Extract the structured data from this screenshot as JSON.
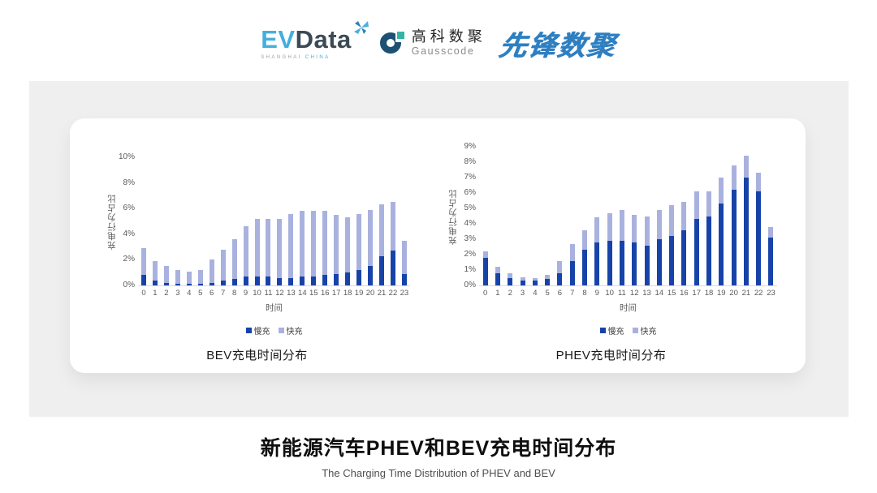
{
  "header": {
    "evdata": {
      "ev": "EV",
      "data": "Data",
      "sub_left": "SHANGHAI",
      "sub_right": "CHINA"
    },
    "gausscode": {
      "cn": "高科数聚",
      "en": "Gausscode"
    },
    "xianfeng": "先锋数聚"
  },
  "colors": {
    "slow": "#1743a9",
    "fast": "#a9b2de",
    "axis_text": "#595959",
    "baseline": "#d9d9d9",
    "panel": "#efefef"
  },
  "chart_data": [
    {
      "type": "bar",
      "stacked": true,
      "title": "BEV充电时间分布",
      "xlabel": "时间",
      "ylabel": "充电行为占比",
      "ylim": [
        0,
        10
      ],
      "ytick_step": 2,
      "ytick_suffix": "%",
      "grid": false,
      "legend_position": "bottom",
      "categories": [
        "0",
        "1",
        "2",
        "3",
        "4",
        "5",
        "6",
        "7",
        "8",
        "9",
        "10",
        "11",
        "12",
        "13",
        "14",
        "15",
        "16",
        "17",
        "18",
        "19",
        "20",
        "21",
        "22",
        "23"
      ],
      "series": [
        {
          "name": "慢充",
          "values": [
            0.8,
            0.4,
            0.2,
            0.1,
            0.1,
            0.1,
            0.2,
            0.4,
            0.5,
            0.7,
            0.7,
            0.7,
            0.6,
            0.6,
            0.7,
            0.7,
            0.8,
            0.9,
            1.0,
            1.2,
            1.5,
            2.3,
            2.7,
            0.9
          ]
        },
        {
          "name": "快充",
          "values": [
            2.1,
            1.5,
            1.3,
            1.1,
            1.0,
            1.1,
            1.8,
            2.4,
            3.1,
            3.9,
            4.5,
            4.5,
            4.6,
            5.0,
            5.1,
            5.1,
            5.0,
            4.6,
            4.3,
            4.4,
            4.4,
            4.0,
            3.8,
            2.6
          ]
        }
      ]
    },
    {
      "type": "bar",
      "stacked": true,
      "title": "PHEV充电时间分布",
      "xlabel": "时间",
      "ylabel": "充电行为占比",
      "ylim": [
        0,
        9
      ],
      "ytick_step": 1,
      "ytick_suffix": "%",
      "grid": false,
      "legend_position": "bottom",
      "categories": [
        "0",
        "1",
        "2",
        "3",
        "4",
        "5",
        "6",
        "7",
        "8",
        "9",
        "10",
        "11",
        "12",
        "13",
        "14",
        "15",
        "16",
        "17",
        "18",
        "19",
        "20",
        "21",
        "22",
        "23"
      ],
      "series": [
        {
          "name": "慢充",
          "values": [
            1.8,
            0.8,
            0.5,
            0.3,
            0.3,
            0.4,
            0.8,
            1.6,
            2.3,
            2.8,
            2.9,
            2.9,
            2.8,
            2.6,
            3.0,
            3.2,
            3.6,
            4.3,
            4.5,
            5.3,
            6.2,
            7.0,
            6.1,
            3.1
          ]
        },
        {
          "name": "快充",
          "values": [
            0.4,
            0.4,
            0.3,
            0.25,
            0.2,
            0.3,
            0.8,
            1.1,
            1.3,
            1.6,
            1.8,
            2.0,
            1.8,
            1.9,
            1.9,
            2.0,
            1.8,
            1.8,
            1.6,
            1.7,
            1.6,
            1.4,
            1.2,
            0.7
          ]
        }
      ]
    }
  ],
  "footer": {
    "title": "新能源汽车PHEV和BEV充电时间分布",
    "subtitle": "The Charging Time Distribution of PHEV and BEV"
  }
}
